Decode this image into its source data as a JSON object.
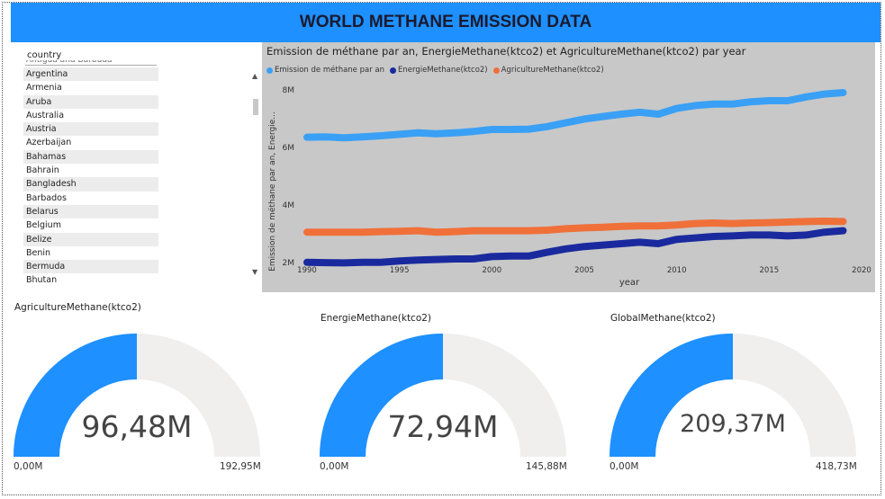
{
  "header": {
    "title": "WORLD METHANE EMISSION DATA"
  },
  "slicer": {
    "header": "country",
    "cut_item": "Antigua and Barbuda",
    "items": [
      "Argentina",
      "Armenia",
      "Aruba",
      "Australia",
      "Austria",
      "Azerbaijan",
      "Bahamas",
      "Bahrain",
      "Bangladesh",
      "Barbados",
      "Belarus",
      "Belgium",
      "Belize",
      "Benin",
      "Bermuda",
      "Bhutan"
    ],
    "scroll_up_icon": "chevron-up-icon",
    "scroll_down_icon": "chevron-down-icon"
  },
  "line_chart": {
    "title": "Emission de méthane par an, EnergieMethane(ktco2) et AgricultureMethane(ktco2) par year"
  },
  "chart_data": {
    "type": "line",
    "title": "Emission de méthane par an, EnergieMethane(ktco2) et AgricultureMethane(ktco2) par year",
    "xlabel": "year",
    "ylabel": "Emission de méthane par an, Energie...",
    "xlim": [
      1990,
      2020
    ],
    "ylim": [
      1.9,
      8.4
    ],
    "xticks": [
      "1990",
      "1995",
      "2000",
      "2005",
      "2010",
      "2015",
      "2020"
    ],
    "yticks": [
      "2M",
      "4M",
      "6M",
      "8M"
    ],
    "x": [
      1990,
      1991,
      1992,
      1993,
      1994,
      1995,
      1996,
      1997,
      1998,
      1999,
      2000,
      2001,
      2002,
      2003,
      2004,
      2005,
      2006,
      2007,
      2008,
      2009,
      2010,
      2011,
      2012,
      2013,
      2014,
      2015,
      2016,
      2017,
      2018,
      2019
    ],
    "series": [
      {
        "name": "Emission de méthane par an",
        "color": "#3aa0f5",
        "values": [
          6.35,
          6.36,
          6.33,
          6.36,
          6.4,
          6.45,
          6.5,
          6.47,
          6.5,
          6.55,
          6.62,
          6.62,
          6.63,
          6.72,
          6.85,
          6.98,
          7.07,
          7.15,
          7.22,
          7.15,
          7.35,
          7.45,
          7.5,
          7.5,
          7.58,
          7.62,
          7.62,
          7.75,
          7.85,
          7.9
        ]
      },
      {
        "name": "EnergieMethane(ktco2)",
        "color": "#1a2a9e",
        "values": [
          2.0,
          1.99,
          1.98,
          2.0,
          2.0,
          2.05,
          2.08,
          2.1,
          2.12,
          2.12,
          2.2,
          2.22,
          2.22,
          2.35,
          2.47,
          2.55,
          2.6,
          2.65,
          2.7,
          2.65,
          2.8,
          2.85,
          2.9,
          2.92,
          2.95,
          2.95,
          2.92,
          2.95,
          3.05,
          3.1
        ]
      },
      {
        "name": "AgricultureMethane(ktco2)",
        "color": "#f0703a",
        "values": [
          3.05,
          3.05,
          3.05,
          3.05,
          3.07,
          3.08,
          3.1,
          3.05,
          3.07,
          3.1,
          3.1,
          3.1,
          3.1,
          3.12,
          3.17,
          3.2,
          3.22,
          3.25,
          3.27,
          3.27,
          3.3,
          3.35,
          3.37,
          3.35,
          3.37,
          3.38,
          3.4,
          3.42,
          3.43,
          3.42
        ]
      }
    ],
    "legend_placement": "top-left",
    "background": "#c8c8c8"
  },
  "gauges": [
    {
      "title": "AgricultureMethane(ktco2)",
      "value_label": "96,48M",
      "min_label": "0,00M",
      "max_label": "192,95M",
      "fraction": 0.5
    },
    {
      "title": "EnergieMethane(ktco2)",
      "value_label": "72,94M",
      "min_label": "0,00M",
      "max_label": "145,88M",
      "fraction": 0.5
    },
    {
      "title": "GlobalMethane(ktco2)",
      "value_label": "209,37M",
      "min_label": "0,00M",
      "max_label": "418,73M",
      "fraction": 0.5
    }
  ],
  "colors": {
    "accent": "#1e90ff",
    "gauge_fill": "#1e90ff",
    "gauge_track": "#f0efee"
  }
}
